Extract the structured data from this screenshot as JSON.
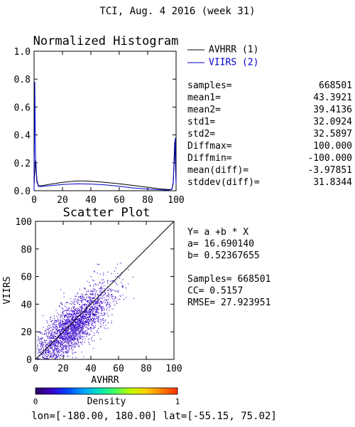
{
  "page": {
    "title": "TCI,  Aug. 4 2016 (week 31)",
    "footer": "lon=[-180.00, 180.00] lat=[-55.15, 75.02]"
  },
  "colors": {
    "series1": "#000000",
    "series2": "#0000cc",
    "scatter_low": "#3300aa",
    "scatter_high": "#5522ee"
  },
  "chart_data": [
    {
      "type": "line",
      "title": "Normalized Histogram",
      "xlim": [
        0,
        100
      ],
      "ylim": [
        0,
        1.0
      ],
      "xticks": [
        "0",
        "20",
        "40",
        "60",
        "80",
        "100"
      ],
      "yticks": [
        "0.0",
        "0.2",
        "0.4",
        "0.6",
        "0.8",
        "1.0"
      ],
      "legend_position": "top-right",
      "series": [
        {
          "name": "AVHRR (1)",
          "color": "#000000",
          "x": [
            0,
            1,
            2,
            3,
            5,
            10,
            20,
            30,
            35,
            40,
            50,
            60,
            70,
            80,
            90,
            95,
            97,
            98,
            99,
            100
          ],
          "y": [
            0.04,
            0.22,
            0.06,
            0.04,
            0.035,
            0.045,
            0.06,
            0.07,
            0.07,
            0.068,
            0.06,
            0.05,
            0.038,
            0.025,
            0.012,
            0.008,
            0.01,
            0.05,
            0.35,
            0.05
          ]
        },
        {
          "name": "VIIRS (2)",
          "color": "#0000cc",
          "x": [
            0,
            0.5,
            1,
            2,
            3,
            5,
            10,
            20,
            30,
            40,
            50,
            60,
            70,
            80,
            90,
            95,
            97,
            98,
            99,
            99.5,
            100
          ],
          "y": [
            0.0,
            0.78,
            0.25,
            0.08,
            0.03,
            0.03,
            0.035,
            0.045,
            0.05,
            0.048,
            0.042,
            0.032,
            0.02,
            0.012,
            0.006,
            0.004,
            0.01,
            0.06,
            0.3,
            0.38,
            0.05
          ]
        }
      ],
      "stats": [
        {
          "label": "samples=",
          "value": "668501"
        },
        {
          "label": "mean1=",
          "value": "43.3921"
        },
        {
          "label": "mean2=",
          "value": "39.4136"
        },
        {
          "label": "std1=",
          "value": "32.0924"
        },
        {
          "label": "std2=",
          "value": "32.5897"
        },
        {
          "label": "Diffmax=",
          "value": "100.000"
        },
        {
          "label": "Diffmin=",
          "value": "-100.000"
        },
        {
          "label": "mean(diff)=",
          "value": "-3.97851"
        },
        {
          "label": "stddev(diff)=",
          "value": "31.8344"
        }
      ]
    },
    {
      "type": "scatter",
      "title": "Scatter Plot",
      "xlabel": "AVHRR",
      "ylabel": "VIIRS",
      "xlim": [
        0,
        100
      ],
      "ylim": [
        0,
        100
      ],
      "xticks": [
        "0",
        "20",
        "40",
        "60",
        "80",
        "100"
      ],
      "yticks": [
        "0",
        "20",
        "40",
        "60",
        "80",
        "100"
      ],
      "one_to_one_line": true,
      "fit": {
        "a": 16.69014,
        "b": 0.52367655
      },
      "point_cloud": {
        "count": 2600,
        "x_center": 26,
        "x_spread": 14,
        "x_min": 1,
        "x_max": 72,
        "slope": 0.82,
        "intercept": 2,
        "y_spread": 9
      },
      "stats_lines": [
        "Y= a +b * X",
        "a= 16.690140",
        "b= 0.52367655",
        "",
        "Samples= 668501",
        "CC=  0.5157",
        "RMSE= 27.923951"
      ]
    }
  ],
  "colorbar": {
    "label": "Density",
    "min_label": "0",
    "max_label": "1",
    "stops": [
      "#2a0060",
      "#3a00c8",
      "#0040ff",
      "#00a0ff",
      "#00e0c0",
      "#40ff60",
      "#c0ff00",
      "#ffd000",
      "#ff8000",
      "#ff3000"
    ]
  }
}
